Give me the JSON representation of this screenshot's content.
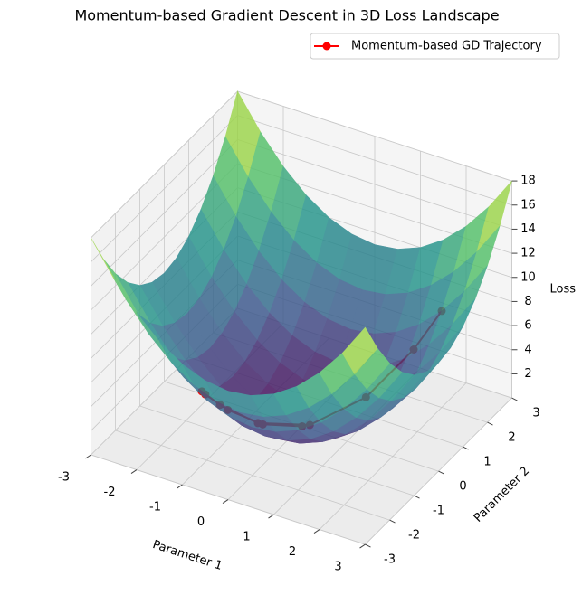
{
  "chart_data": {
    "type": "surface3d",
    "title": "Momentum-based Gradient Descent in 3D Loss Landscape",
    "xlabel": "Parameter 1",
    "ylabel": "Parameter 2",
    "zlabel": "Loss",
    "xlim": [
      -3,
      3
    ],
    "ylim": [
      -3,
      3
    ],
    "zlim": [
      0,
      18
    ],
    "xticks": [
      -3,
      -2,
      -1,
      0,
      1,
      2,
      3
    ],
    "yticks": [
      -3,
      -2,
      -1,
      0,
      1,
      2,
      3
    ],
    "zticks": [
      2,
      4,
      6,
      8,
      10,
      12,
      14,
      16,
      18
    ],
    "grid": true,
    "legend": "upper right",
    "surface": {
      "colormap": "viridis",
      "x": [
        -3,
        -2.5,
        -2,
        -1.5,
        -1,
        -0.5,
        0,
        0.5,
        1,
        1.5,
        2,
        2.5,
        3
      ],
      "y": [
        -3,
        -2.5,
        -2,
        -1.5,
        -1,
        -0.5,
        0,
        0.5,
        1,
        1.5,
        2,
        2.5,
        3
      ],
      "z": [
        [
          18,
          15.25,
          13,
          11.25,
          10,
          9.25,
          9,
          9.25,
          10,
          11.25,
          13,
          15.25,
          18
        ],
        [
          15.25,
          12.5,
          10.25,
          8.5,
          7.25,
          6.5,
          6.25,
          6.5,
          7.25,
          8.5,
          10.25,
          12.5,
          15.25
        ],
        [
          13,
          10.25,
          8,
          6.25,
          5,
          4.25,
          4,
          4.25,
          5,
          6.25,
          8,
          10.25,
          13
        ],
        [
          11.25,
          8.5,
          6.25,
          4.5,
          3.25,
          2.5,
          2.25,
          2.5,
          3.25,
          4.5,
          6.25,
          8.5,
          11.25
        ],
        [
          10,
          7.25,
          5,
          3.25,
          2,
          1.25,
          1,
          1.25,
          2,
          3.25,
          5,
          7.25,
          10
        ],
        [
          9.25,
          6.5,
          4.25,
          2.5,
          1.25,
          0.5,
          0.25,
          0.5,
          1.25,
          2.5,
          4.25,
          6.5,
          9.25
        ],
        [
          9,
          6.25,
          4,
          2.25,
          1,
          0.25,
          0,
          0.25,
          1,
          2.25,
          4,
          6.25,
          9
        ],
        [
          9.25,
          6.5,
          4.25,
          2.5,
          1.25,
          0.5,
          0.25,
          0.5,
          1.25,
          2.5,
          4.25,
          6.5,
          9.25
        ],
        [
          10,
          7.25,
          5,
          3.25,
          2,
          1.25,
          1,
          1.25,
          2,
          3.25,
          5,
          7.25,
          10
        ],
        [
          11.25,
          8.5,
          6.25,
          4.5,
          3.25,
          2.5,
          2.25,
          2.5,
          3.25,
          4.5,
          6.25,
          8.5,
          11.25
        ],
        [
          13,
          10.25,
          8,
          6.25,
          5,
          4.25,
          4,
          4.25,
          5,
          6.25,
          8,
          10.25,
          13
        ],
        [
          15.25,
          12.5,
          10.25,
          8.5,
          7.25,
          6.5,
          6.25,
          6.5,
          7.25,
          8.5,
          10.25,
          12.5,
          15.25
        ],
        [
          18,
          15.25,
          13,
          11.25,
          10,
          9.25,
          9,
          9.25,
          10,
          11.25,
          13,
          15.25,
          18
        ]
      ]
    },
    "series": [
      {
        "name": "Momentum-based GD Trajectory",
        "color": "#ff0000",
        "x": [
          2,
          1.6,
          0.92,
          0.12,
          -0.62,
          -1.16,
          -1.42,
          -1.37,
          -1.05,
          -0.55,
          0.01
        ],
        "y": [
          2,
          1.6,
          0.92,
          0.12,
          -0.62,
          -1.16,
          -1.42,
          -1.37,
          -1.05,
          -0.55,
          0.01
        ],
        "z": [
          8,
          5.12,
          1.69,
          0.03,
          0.76,
          2.7,
          4.02,
          3.73,
          2.19,
          0.6,
          0
        ]
      }
    ]
  }
}
